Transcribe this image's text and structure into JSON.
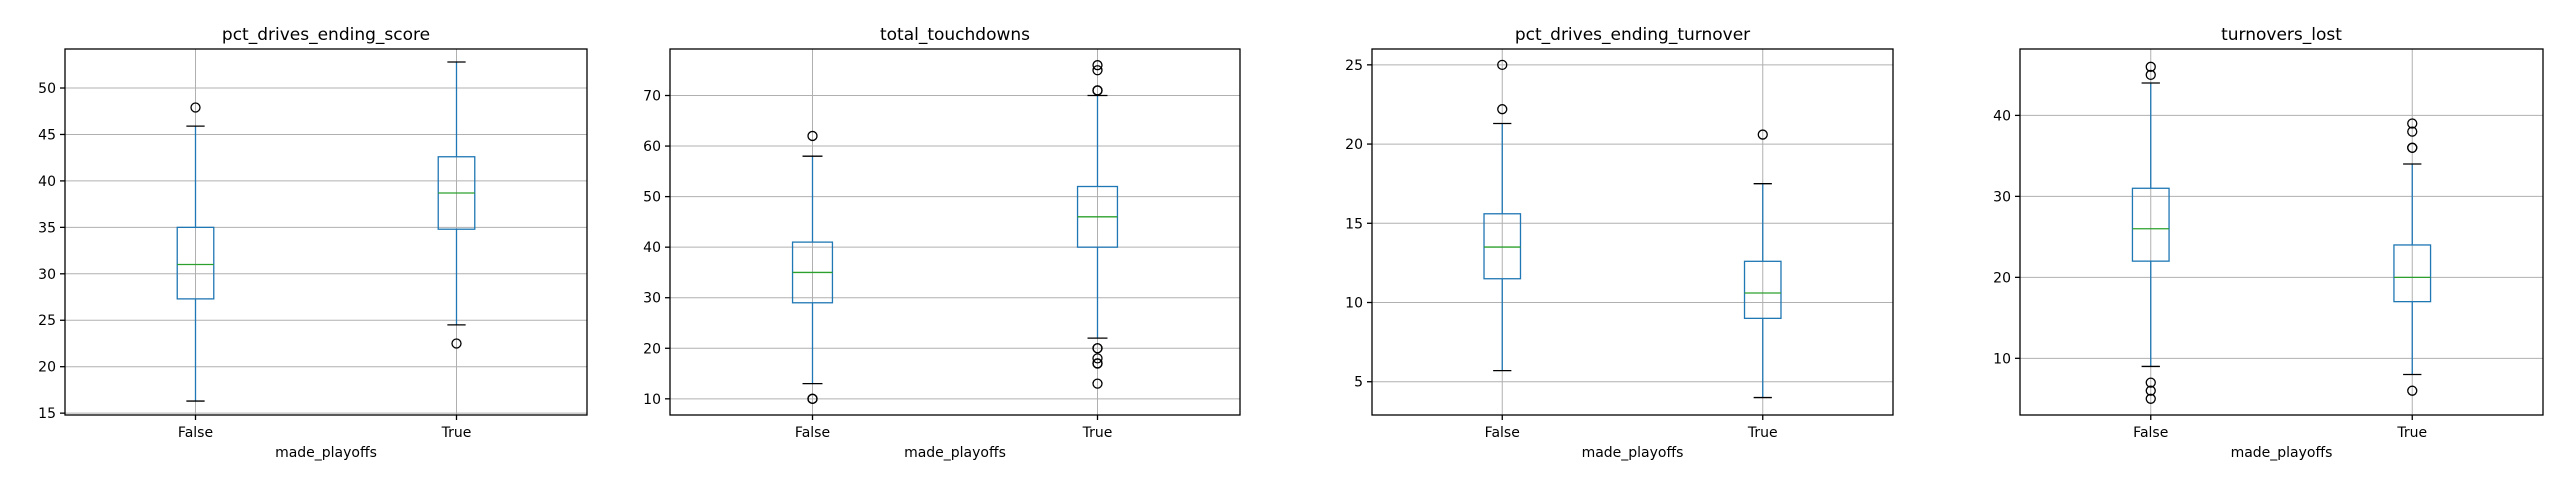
{
  "colors": {
    "box": "#1f77b4",
    "median": "#2ca02c",
    "grid": "#b0b0b0",
    "axis": "#000000",
    "flier": "#000000"
  },
  "chart_data": [
    {
      "type": "box",
      "title": "pct_drives_ending_score",
      "xlabel": "made_playoffs",
      "categories": [
        "False",
        "True"
      ],
      "ylim": [
        14.8,
        54.2
      ],
      "yticks": [
        15,
        20,
        25,
        30,
        35,
        40,
        45,
        50
      ],
      "grid": true,
      "boxes": [
        {
          "category": "False",
          "whislo": 16.3,
          "q1": 27.3,
          "median": 31.0,
          "q3": 35.0,
          "whishi": 45.9,
          "fliers": [
            47.9
          ]
        },
        {
          "category": "True",
          "whislo": 24.5,
          "q1": 34.8,
          "median": 38.7,
          "q3": 42.6,
          "whishi": 52.8,
          "fliers": [
            22.5
          ]
        }
      ]
    },
    {
      "type": "box",
      "title": "total_touchdowns",
      "xlabel": "made_playoffs",
      "categories": [
        "False",
        "True"
      ],
      "ylim": [
        6.8,
        79.2
      ],
      "yticks": [
        10,
        20,
        30,
        40,
        50,
        60,
        70
      ],
      "grid": true,
      "boxes": [
        {
          "category": "False",
          "whislo": 13,
          "q1": 29,
          "median": 35,
          "q3": 41,
          "whishi": 58,
          "fliers": [
            62,
            10,
            10
          ]
        },
        {
          "category": "True",
          "whislo": 22,
          "q1": 40,
          "median": 46,
          "q3": 52,
          "whishi": 70,
          "fliers": [
            71,
            71,
            75,
            76,
            20,
            20,
            18,
            17,
            17,
            13
          ]
        }
      ]
    },
    {
      "type": "box",
      "title": "pct_drives_ending_turnover",
      "xlabel": "made_playoffs",
      "categories": [
        "False",
        "True"
      ],
      "ylim": [
        2.9,
        26.0
      ],
      "yticks": [
        5,
        10,
        15,
        20,
        25
      ],
      "grid": true,
      "boxes": [
        {
          "category": "False",
          "whislo": 5.7,
          "q1": 11.5,
          "median": 13.5,
          "q3": 15.6,
          "whishi": 21.3,
          "fliers": [
            22.2,
            25.0
          ]
        },
        {
          "category": "True",
          "whislo": 4.0,
          "q1": 9.0,
          "median": 10.6,
          "q3": 12.6,
          "whishi": 17.5,
          "fliers": [
            20.6
          ]
        }
      ]
    },
    {
      "type": "box",
      "title": "turnovers_lost",
      "xlabel": "made_playoffs",
      "categories": [
        "False",
        "True"
      ],
      "ylim": [
        3.0,
        48.2
      ],
      "yticks": [
        10,
        20,
        30,
        40
      ],
      "grid": true,
      "boxes": [
        {
          "category": "False",
          "whislo": 9,
          "q1": 22,
          "median": 26,
          "q3": 31,
          "whishi": 44,
          "fliers": [
            45,
            46,
            7,
            6,
            5
          ]
        },
        {
          "category": "True",
          "whislo": 8,
          "q1": 17,
          "median": 20,
          "q3": 24,
          "whishi": 34,
          "fliers": [
            36,
            36,
            38,
            39,
            6
          ]
        }
      ]
    }
  ]
}
